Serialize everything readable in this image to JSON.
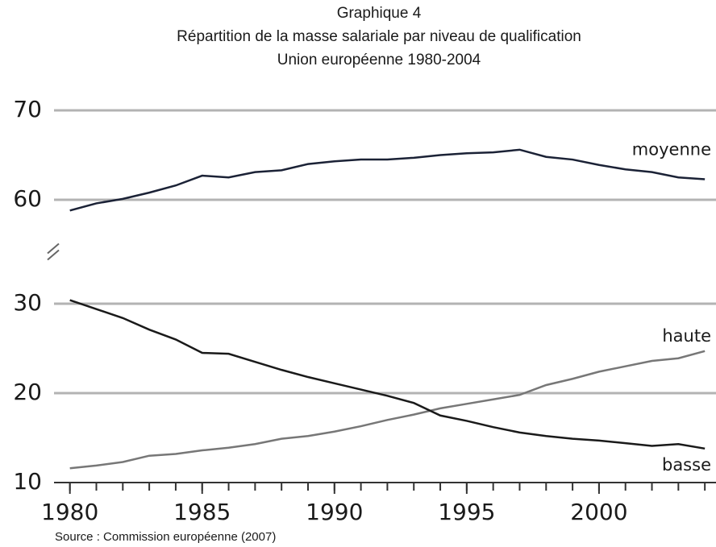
{
  "chart_data": {
    "type": "line",
    "title": "Graphique 4",
    "subtitle": [
      "Répartition de la masse salariale par niveau de qualification",
      "Union européenne 1980-2004"
    ],
    "source": "Source : Commission européenne (2007)",
    "x": [
      1980,
      1981,
      1982,
      1983,
      1984,
      1985,
      1986,
      1987,
      1988,
      1989,
      1990,
      1991,
      1992,
      1993,
      1994,
      1995,
      1996,
      1997,
      1998,
      1999,
      2000,
      2001,
      2002,
      2003,
      2004
    ],
    "series": [
      {
        "name": "moyenne",
        "color": "#1b2236",
        "values": [
          58.8,
          59.6,
          60.1,
          60.8,
          61.6,
          62.7,
          62.5,
          63.1,
          63.3,
          64.0,
          64.3,
          64.5,
          64.5,
          64.7,
          65.0,
          65.2,
          65.3,
          65.6,
          64.8,
          64.5,
          63.9,
          63.4,
          63.1,
          62.5,
          62.3
        ]
      },
      {
        "name": "haute",
        "color": "#777777",
        "values": [
          11.6,
          11.9,
          12.3,
          13.0,
          13.2,
          13.6,
          13.9,
          14.3,
          14.9,
          15.2,
          15.7,
          16.3,
          17.0,
          17.6,
          18.3,
          18.8,
          19.3,
          19.8,
          20.9,
          21.6,
          22.4,
          23.0,
          23.6,
          23.9,
          24.7
        ]
      },
      {
        "name": "basse",
        "color": "#1a1a1a",
        "values": [
          30.4,
          29.4,
          28.4,
          27.1,
          26.0,
          24.5,
          24.4,
          23.5,
          22.6,
          21.8,
          21.1,
          20.4,
          19.7,
          18.9,
          17.5,
          16.9,
          16.2,
          15.6,
          15.2,
          14.9,
          14.7,
          14.4,
          14.1,
          14.3,
          13.8
        ]
      }
    ],
    "xlim": [
      1979.4,
      2004.3
    ],
    "xticks": [
      1980,
      1985,
      1990,
      1995,
      2000
    ],
    "ylim": [
      10,
      70
    ],
    "axis_break": [
      35,
      55
    ],
    "yticks": [
      10,
      20,
      30,
      60,
      70
    ],
    "grid": true
  }
}
